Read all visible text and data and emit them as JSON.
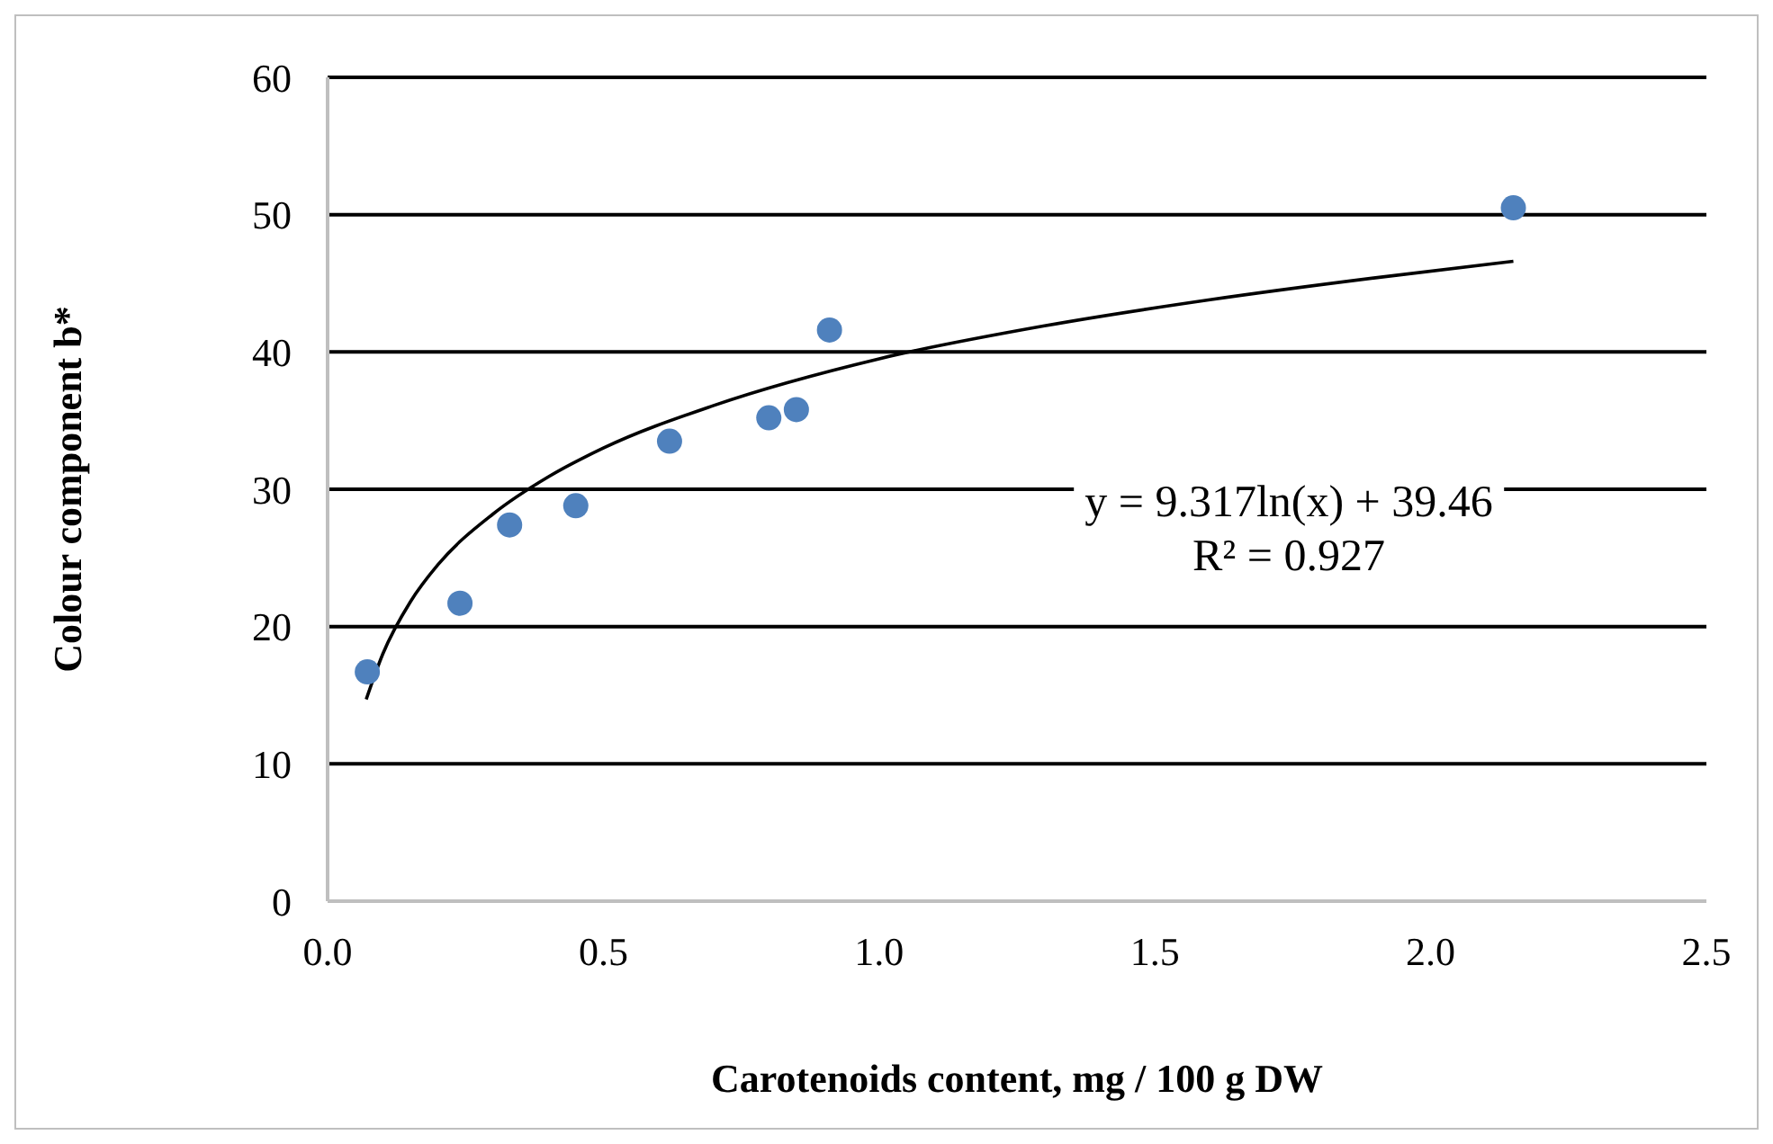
{
  "chart_data": {
    "type": "scatter",
    "xlabel": "Carotenoids content, mg / 100 g DW",
    "ylabel": "Colour component b*",
    "xlim": [
      0,
      2.5
    ],
    "xticks": [
      {
        "value": 0,
        "label": "0.0"
      },
      {
        "value": 0.5,
        "label": "0.5"
      },
      {
        "value": 1,
        "label": "1.0"
      },
      {
        "value": 1.5,
        "label": "1.5"
      },
      {
        "value": 2,
        "label": "2.0"
      },
      {
        "value": 2.5,
        "label": "2.5"
      }
    ],
    "ylim": [
      0,
      60
    ],
    "yticks": [
      0,
      10,
      20,
      30,
      40,
      50,
      60
    ],
    "grid": "y",
    "annotations": [
      "y = 9.317ln(x) + 39.46",
      "R² = 0.927"
    ],
    "series": [
      {
        "marker": "circle",
        "color": "#4f81bd",
        "x": [
          0.072,
          0.24,
          0.33,
          0.45,
          0.62,
          0.8,
          0.85,
          0.91,
          2.15
        ],
        "values": [
          16.7,
          21.7,
          27.4,
          28.8,
          33.5,
          35.2,
          35.8,
          41.6,
          50.5
        ]
      },
      {
        "type": "line",
        "color": "#000000",
        "x": [
          0.07,
          0.1,
          0.15,
          0.2,
          0.3,
          0.4,
          0.5,
          0.7,
          1.0,
          1.3,
          1.6,
          1.9,
          2.15
        ],
        "values": [
          14.7,
          18.0,
          21.8,
          24.5,
          28.2,
          30.9,
          33.0,
          36.1,
          39.5,
          41.9,
          43.8,
          45.4,
          46.6
        ]
      }
    ]
  }
}
